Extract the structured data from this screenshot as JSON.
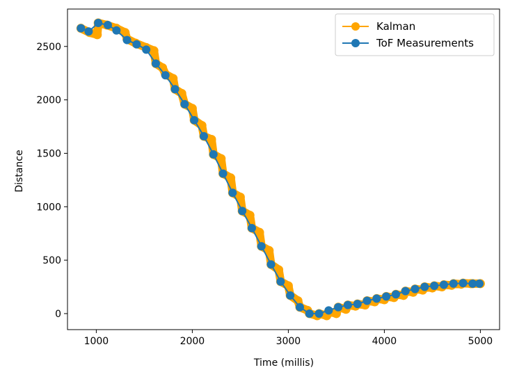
{
  "chart_data": {
    "type": "line",
    "xlabel": "Time (millis)",
    "ylabel": "Distance",
    "xlim": [
      700,
      5200
    ],
    "ylim": [
      -150,
      2850
    ],
    "xticks": [
      1000,
      2000,
      3000,
      4000,
      5000
    ],
    "yticks": [
      0,
      500,
      1000,
      1500,
      2000,
      2500
    ],
    "grid": false,
    "legend_position": "upper-right",
    "series": [
      {
        "name": "Kalman",
        "color": "#FFA500",
        "kind": "step-trace",
        "points": [
          [
            840,
            2670
          ],
          [
            930,
            2630
          ],
          [
            1010,
            2610
          ],
          [
            1020,
            2720
          ],
          [
            1110,
            2700
          ],
          [
            1210,
            2670
          ],
          [
            1300,
            2630
          ],
          [
            1320,
            2570
          ],
          [
            1410,
            2530
          ],
          [
            1520,
            2490
          ],
          [
            1600,
            2460
          ],
          [
            1620,
            2340
          ],
          [
            1690,
            2300
          ],
          [
            1720,
            2240
          ],
          [
            1800,
            2200
          ],
          [
            1820,
            2100
          ],
          [
            1890,
            2060
          ],
          [
            1920,
            1960
          ],
          [
            2000,
            1920
          ],
          [
            2020,
            1810
          ],
          [
            2100,
            1760
          ],
          [
            2120,
            1660
          ],
          [
            2200,
            1630
          ],
          [
            2220,
            1490
          ],
          [
            2300,
            1450
          ],
          [
            2320,
            1310
          ],
          [
            2400,
            1270
          ],
          [
            2420,
            1130
          ],
          [
            2500,
            1090
          ],
          [
            2520,
            960
          ],
          [
            2600,
            920
          ],
          [
            2620,
            800
          ],
          [
            2700,
            760
          ],
          [
            2720,
            630
          ],
          [
            2800,
            590
          ],
          [
            2820,
            460
          ],
          [
            2900,
            410
          ],
          [
            2920,
            300
          ],
          [
            3000,
            260
          ],
          [
            3020,
            170
          ],
          [
            3100,
            120
          ],
          [
            3120,
            60
          ],
          [
            3200,
            30
          ],
          [
            3220,
            0
          ],
          [
            3300,
            -20
          ],
          [
            3320,
            0
          ],
          [
            3400,
            -20
          ],
          [
            3420,
            20
          ],
          [
            3500,
            0
          ],
          [
            3520,
            60
          ],
          [
            3600,
            40
          ],
          [
            3620,
            80
          ],
          [
            3700,
            70
          ],
          [
            3720,
            90
          ],
          [
            3800,
            80
          ],
          [
            3820,
            120
          ],
          [
            3900,
            110
          ],
          [
            3920,
            140
          ],
          [
            4000,
            130
          ],
          [
            4020,
            160
          ],
          [
            4100,
            150
          ],
          [
            4120,
            180
          ],
          [
            4200,
            170
          ],
          [
            4220,
            210
          ],
          [
            4300,
            200
          ],
          [
            4320,
            230
          ],
          [
            4400,
            220
          ],
          [
            4420,
            250
          ],
          [
            4500,
            240
          ],
          [
            4520,
            260
          ],
          [
            4600,
            250
          ],
          [
            4620,
            270
          ],
          [
            4700,
            265
          ],
          [
            4720,
            280
          ],
          [
            4800,
            275
          ],
          [
            4820,
            285
          ],
          [
            4900,
            280
          ],
          [
            4920,
            280
          ],
          [
            5000,
            280
          ]
        ]
      },
      {
        "name": "ToF Measurements",
        "color": "#1F77B4",
        "kind": "marker-line",
        "points": [
          [
            840,
            2670
          ],
          [
            920,
            2640
          ],
          [
            1020,
            2720
          ],
          [
            1120,
            2700
          ],
          [
            1210,
            2650
          ],
          [
            1320,
            2560
          ],
          [
            1420,
            2520
          ],
          [
            1520,
            2470
          ],
          [
            1620,
            2340
          ],
          [
            1720,
            2230
          ],
          [
            1820,
            2100
          ],
          [
            1920,
            1960
          ],
          [
            2020,
            1810
          ],
          [
            2120,
            1660
          ],
          [
            2220,
            1490
          ],
          [
            2320,
            1310
          ],
          [
            2420,
            1130
          ],
          [
            2520,
            960
          ],
          [
            2620,
            800
          ],
          [
            2720,
            630
          ],
          [
            2820,
            460
          ],
          [
            2920,
            300
          ],
          [
            3020,
            170
          ],
          [
            3120,
            60
          ],
          [
            3220,
            0
          ],
          [
            3320,
            0
          ],
          [
            3420,
            30
          ],
          [
            3520,
            60
          ],
          [
            3620,
            80
          ],
          [
            3720,
            90
          ],
          [
            3820,
            120
          ],
          [
            3920,
            140
          ],
          [
            4020,
            160
          ],
          [
            4120,
            180
          ],
          [
            4220,
            210
          ],
          [
            4320,
            230
          ],
          [
            4420,
            250
          ],
          [
            4520,
            260
          ],
          [
            4620,
            270
          ],
          [
            4720,
            280
          ],
          [
            4820,
            285
          ],
          [
            4920,
            280
          ],
          [
            4990,
            280
          ]
        ]
      }
    ]
  }
}
